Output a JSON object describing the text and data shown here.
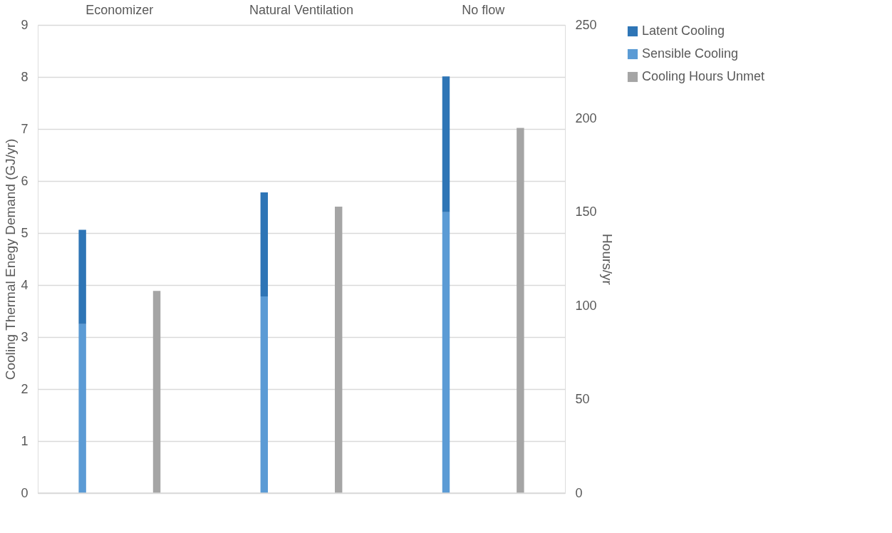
{
  "chart_data": {
    "type": "bar",
    "stacked": true,
    "categories": [
      "Economizer",
      "Natural Ventilation",
      "No flow"
    ],
    "series": [
      {
        "name": "Sensible Cooling",
        "color": "#5b9bd5",
        "values": [
          3.25,
          3.78,
          5.4
        ]
      },
      {
        "name": "Latent Cooling",
        "color": "#2e75b6",
        "values": [
          1.81,
          2.0,
          2.61
        ]
      },
      {
        "name": "Cooling Hours Unmet",
        "color": "#a5a5a5",
        "axis": "y2",
        "values": [
          108,
          153,
          195
        ]
      }
    ],
    "ylabel": "Cooling Thermal Enegy Demand (GJ/yr)",
    "y2label": "Hours/yr",
    "ylim": [
      0,
      9
    ],
    "yticks": [
      0,
      1,
      2,
      3,
      4,
      5,
      6,
      7,
      8,
      9
    ],
    "y2lim": [
      0,
      250
    ],
    "y2ticks": [
      0,
      50,
      100,
      150,
      200,
      250
    ],
    "grid": "y",
    "legend": "right"
  }
}
